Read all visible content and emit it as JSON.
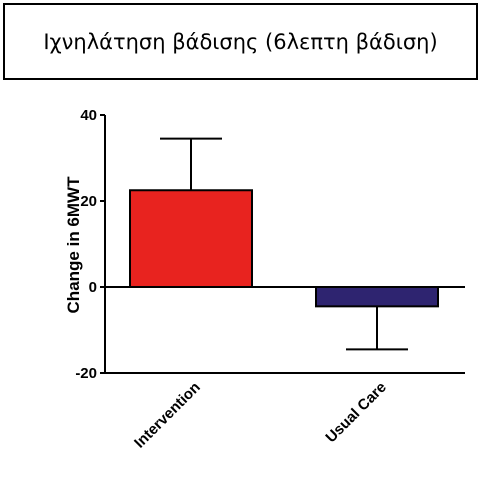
{
  "header": {
    "title": "Ιχνηλάτηση βάδισης (6λεπτη βάδιση)"
  },
  "chart_data": {
    "type": "bar",
    "title": "",
    "xlabel": "",
    "ylabel": "Change in 6MWT",
    "categories": [
      "Intervention",
      "Usual Care"
    ],
    "series": [
      {
        "values": [
          22.5,
          -4.5
        ],
        "error": [
          12,
          10
        ],
        "colors": [
          "#e8231f",
          "#2e2470"
        ]
      }
    ],
    "ylim": [
      -20,
      40
    ],
    "yticks": [
      -20,
      0,
      20,
      40
    ],
    "grid": false,
    "legend": "none"
  }
}
